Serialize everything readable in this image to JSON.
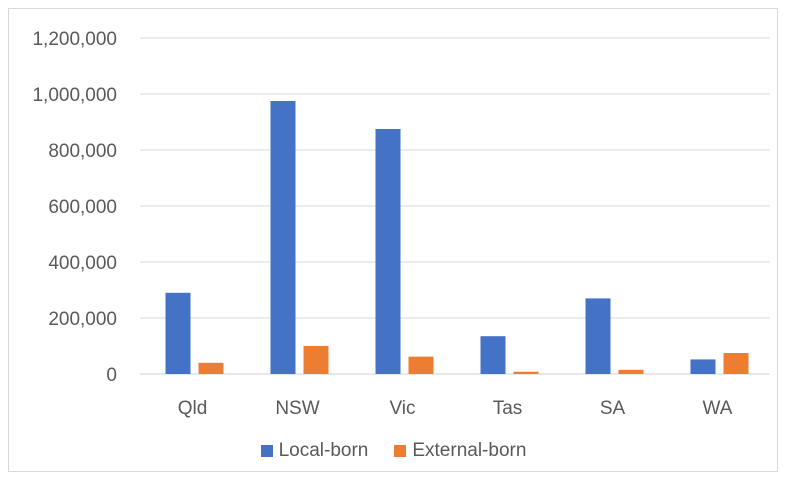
{
  "chart_data": {
    "type": "bar",
    "categories": [
      "Qld",
      "NSW",
      "Vic",
      "Tas",
      "SA",
      "WA"
    ],
    "series": [
      {
        "name": "Local-born",
        "color": "#4472c4",
        "values": [
          290000,
          975000,
          875000,
          135000,
          270000,
          52000
        ]
      },
      {
        "name": "External-born",
        "color": "#ed7d31",
        "values": [
          40000,
          100000,
          62000,
          8000,
          15000,
          75000
        ]
      }
    ],
    "ylim": [
      0,
      1200000
    ],
    "yticks": [
      0,
      200000,
      400000,
      600000,
      800000,
      1000000,
      1200000
    ],
    "ytick_labels": [
      "0",
      "200,000",
      "400,000",
      "600,000",
      "800,000",
      "1,000,000",
      "1,200,000"
    ],
    "grid": true,
    "legend_position": "bottom",
    "xlabel": "",
    "ylabel": ""
  }
}
